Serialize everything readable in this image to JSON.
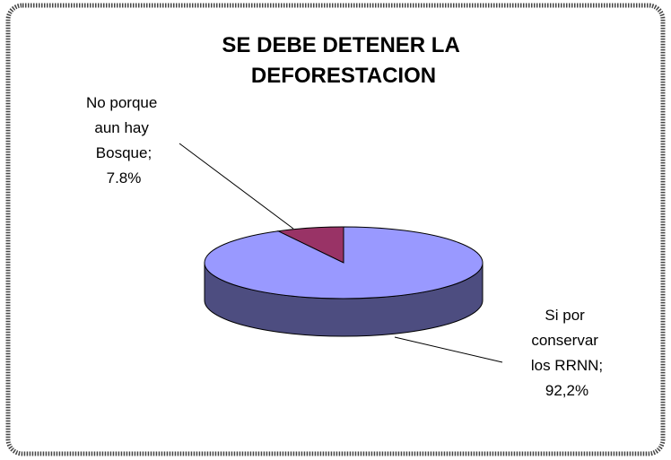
{
  "chart_data": {
    "type": "pie3d",
    "title": "SE DEBE DETENER LA DEFORESTACION",
    "categories": [
      "No porque aun hay Bosque;",
      "Si por conservar los RRNN;"
    ],
    "values": [
      7.8,
      92.2
    ],
    "value_labels": [
      "7.8%",
      "92,2%"
    ],
    "colors": [
      "#993366",
      "#9999ff"
    ]
  }
}
